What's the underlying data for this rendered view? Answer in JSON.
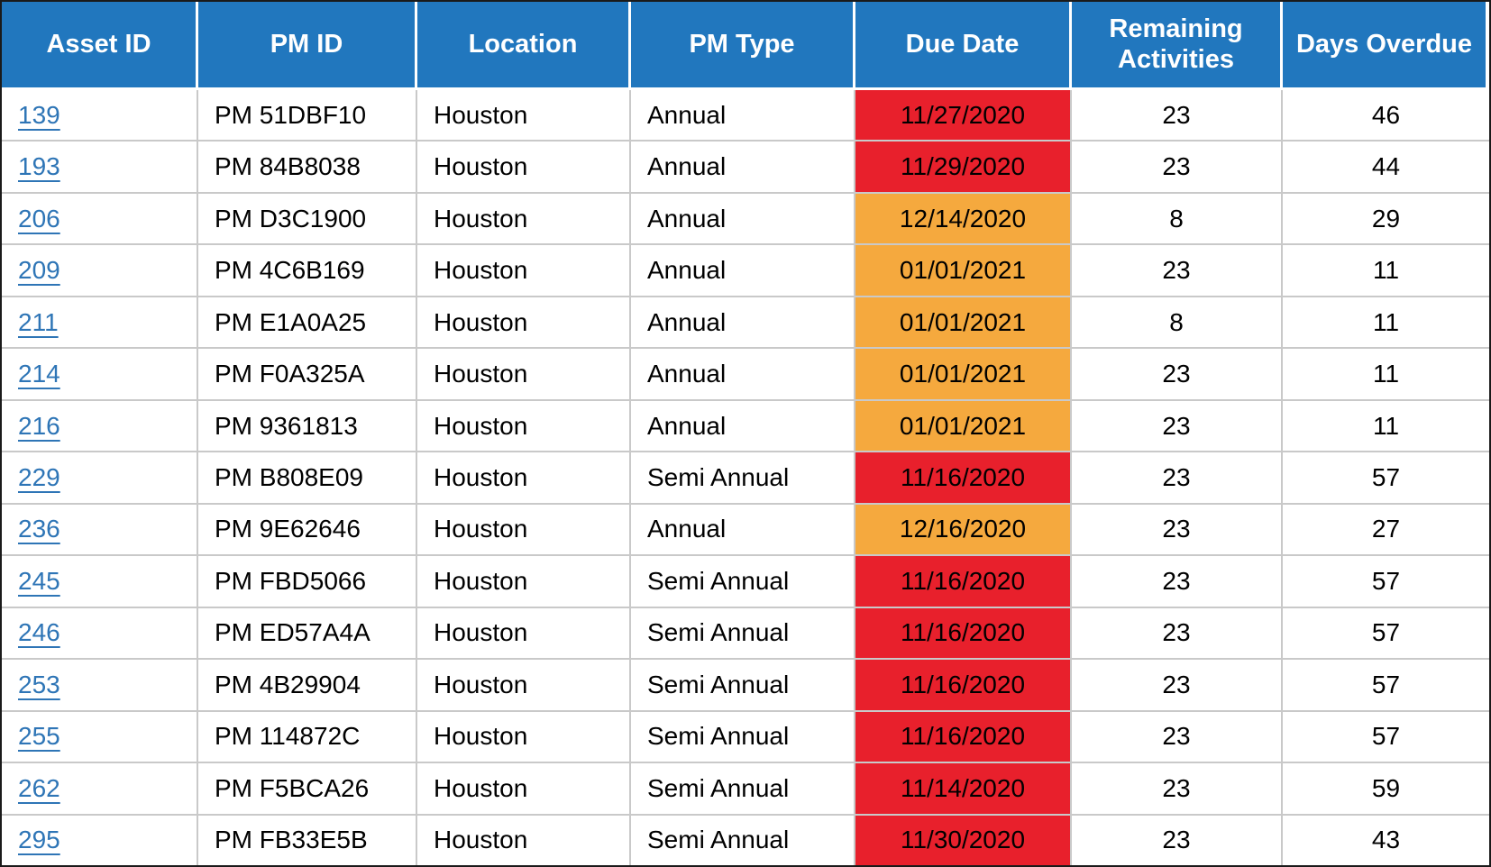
{
  "chart_data": {
    "type": "table",
    "columns": [
      "Asset ID",
      "PM ID",
      "Location",
      "PM Type",
      "Due Date",
      "Remaining Activities",
      "Days Overdue"
    ],
    "rows": [
      {
        "asset_id": "139",
        "pm_id": "PM 51DBF10",
        "location": "Houston",
        "pm_type": "Annual",
        "due_date": "11/27/2020",
        "due_status": "critical",
        "remaining_activities": "23",
        "days_overdue": "46"
      },
      {
        "asset_id": "193",
        "pm_id": "PM 84B8038",
        "location": "Houston",
        "pm_type": "Annual",
        "due_date": "11/29/2020",
        "due_status": "critical",
        "remaining_activities": "23",
        "days_overdue": "44"
      },
      {
        "asset_id": "206",
        "pm_id": "PM D3C1900",
        "location": "Houston",
        "pm_type": "Annual",
        "due_date": "12/14/2020",
        "due_status": "warning",
        "remaining_activities": "8",
        "days_overdue": "29"
      },
      {
        "asset_id": "209",
        "pm_id": "PM 4C6B169",
        "location": "Houston",
        "pm_type": "Annual",
        "due_date": "01/01/2021",
        "due_status": "warning",
        "remaining_activities": "23",
        "days_overdue": "11"
      },
      {
        "asset_id": "211",
        "pm_id": "PM E1A0A25",
        "location": "Houston",
        "pm_type": "Annual",
        "due_date": "01/01/2021",
        "due_status": "warning",
        "remaining_activities": "8",
        "days_overdue": "11"
      },
      {
        "asset_id": "214",
        "pm_id": "PM F0A325A",
        "location": "Houston",
        "pm_type": "Annual",
        "due_date": "01/01/2021",
        "due_status": "warning",
        "remaining_activities": "23",
        "days_overdue": "11"
      },
      {
        "asset_id": "216",
        "pm_id": "PM 9361813",
        "location": "Houston",
        "pm_type": "Annual",
        "due_date": "01/01/2021",
        "due_status": "warning",
        "remaining_activities": "23",
        "days_overdue": "11"
      },
      {
        "asset_id": "229",
        "pm_id": "PM B808E09",
        "location": "Houston",
        "pm_type": "Semi Annual",
        "due_date": "11/16/2020",
        "due_status": "critical",
        "remaining_activities": "23",
        "days_overdue": "57"
      },
      {
        "asset_id": "236",
        "pm_id": "PM 9E62646",
        "location": "Houston",
        "pm_type": "Annual",
        "due_date": "12/16/2020",
        "due_status": "warning",
        "remaining_activities": "23",
        "days_overdue": "27"
      },
      {
        "asset_id": "245",
        "pm_id": "PM FBD5066",
        "location": "Houston",
        "pm_type": "Semi Annual",
        "due_date": "11/16/2020",
        "due_status": "critical",
        "remaining_activities": "23",
        "days_overdue": "57"
      },
      {
        "asset_id": "246",
        "pm_id": "PM ED57A4A",
        "location": "Houston",
        "pm_type": "Semi Annual",
        "due_date": "11/16/2020",
        "due_status": "critical",
        "remaining_activities": "23",
        "days_overdue": "57"
      },
      {
        "asset_id": "253",
        "pm_id": "PM 4B29904",
        "location": "Houston",
        "pm_type": "Semi Annual",
        "due_date": "11/16/2020",
        "due_status": "critical",
        "remaining_activities": "23",
        "days_overdue": "57"
      },
      {
        "asset_id": "255",
        "pm_id": "PM 114872C",
        "location": "Houston",
        "pm_type": "Semi Annual",
        "due_date": "11/16/2020",
        "due_status": "critical",
        "remaining_activities": "23",
        "days_overdue": "57"
      },
      {
        "asset_id": "262",
        "pm_id": "PM F5BCA26",
        "location": "Houston",
        "pm_type": "Semi Annual",
        "due_date": "11/14/2020",
        "due_status": "critical",
        "remaining_activities": "23",
        "days_overdue": "59"
      },
      {
        "asset_id": "295",
        "pm_id": "PM FB33E5B",
        "location": "Houston",
        "pm_type": "Semi Annual",
        "due_date": "11/30/2020",
        "due_status": "critical",
        "remaining_activities": "23",
        "days_overdue": "43"
      }
    ]
  },
  "colors": {
    "header_bg": "#2177BE",
    "header_text": "#FFFFFF",
    "due_critical_bg": "#E8202C",
    "due_warning_bg": "#F5A93E",
    "link_color": "#2E75B6",
    "grid_line": "#C9C9C9",
    "outer_border": "#1A1A1A",
    "row_bg": "#FFFFFF",
    "cell_text": "#000000"
  }
}
